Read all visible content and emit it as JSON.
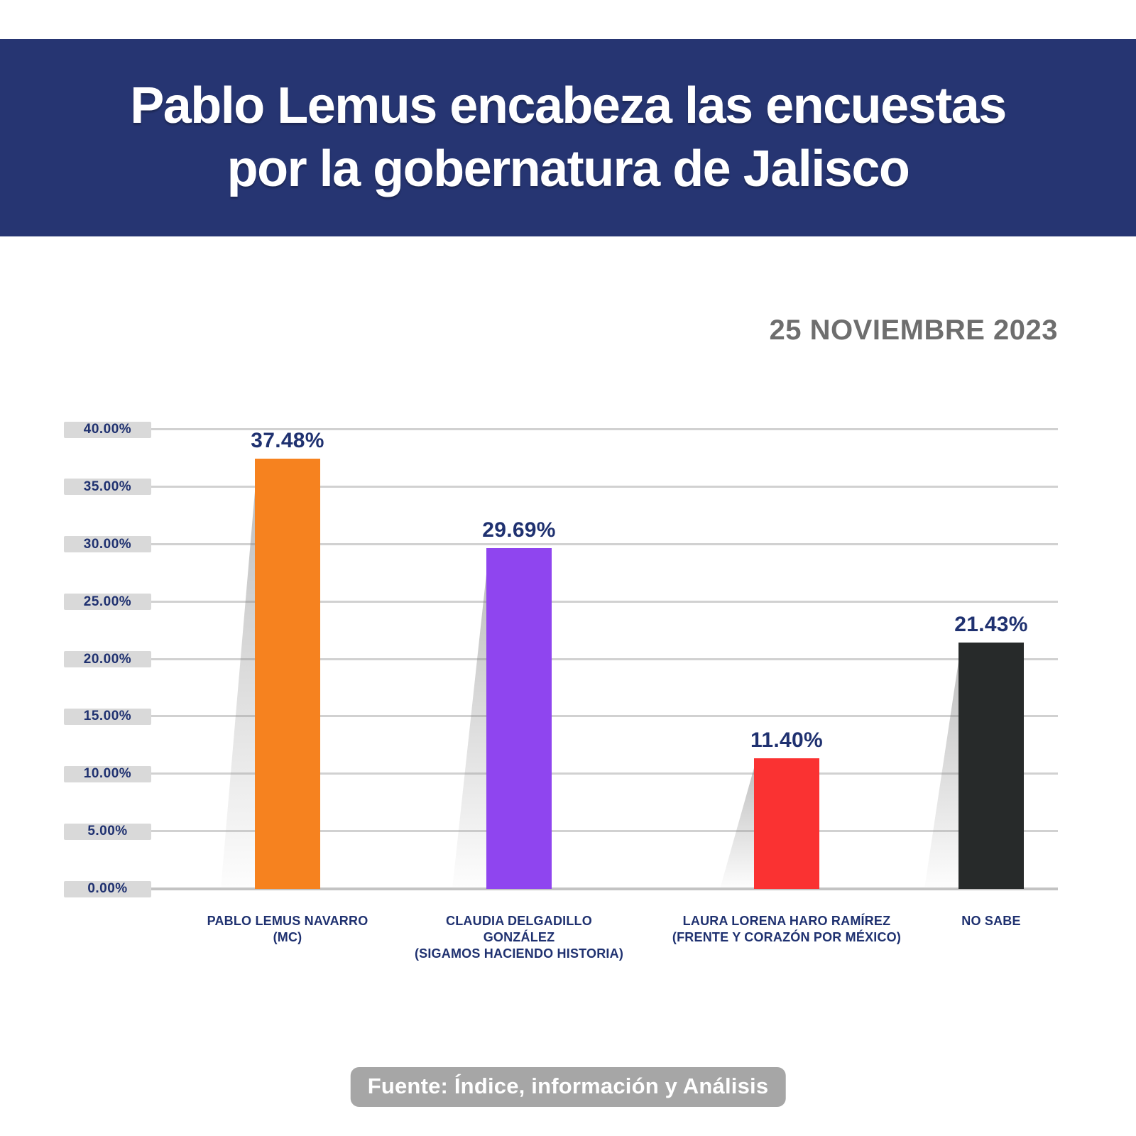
{
  "header": {
    "title_line1": "Pablo Lemus encabeza las encuestas",
    "title_line2": "por la gobernatura de Jalisco",
    "background_color": "#263572",
    "text_color": "#ffffff"
  },
  "date_label": "25 NOVIEMBRE 2023",
  "footer": {
    "source_label": "Fuente: Índice, información y Análisis",
    "background_color": "#a6a6a6",
    "text_color": "#ffffff"
  },
  "chart_data": {
    "type": "bar",
    "title": "Pablo Lemus encabeza las encuestas por la gobernatura de Jalisco",
    "subtitle": "25 NOVIEMBRE 2023",
    "categories": [
      "PABLO LEMUS NAVARRO (MC)",
      "CLAUDIA DELGADILLO GONZÁLEZ (SIGAMOS HACIENDO HISTORIA)",
      "LAURA LORENA HARO RAMÍREZ (FRENTE Y CORAZÓN POR MÉXICO)",
      "NO SABE"
    ],
    "category_lines": [
      [
        "PABLO LEMUS NAVARRO",
        "(MC)"
      ],
      [
        "CLAUDIA DELGADILLO",
        "GONZÁLEZ",
        "(SIGAMOS HACIENDO HISTORIA)"
      ],
      [
        "LAURA LORENA HARO RAMÍREZ",
        "(FRENTE Y CORAZÓN POR MÉXICO)"
      ],
      [
        "NO SABE"
      ]
    ],
    "values": [
      37.48,
      29.69,
      11.4,
      21.43
    ],
    "value_labels": [
      "37.48%",
      "29.69%",
      "11.40%",
      "21.43%"
    ],
    "bar_colors": [
      "#f6821f",
      "#8f45ef",
      "#fa3232",
      "#272a2a"
    ],
    "xlabel": "",
    "ylabel": "",
    "ylim": [
      0,
      40
    ],
    "yticks": [
      0,
      5,
      10,
      15,
      20,
      25,
      30,
      35,
      40
    ],
    "ytick_labels": [
      "0.00%",
      "5.00%",
      "10.00%",
      "15.00%",
      "20.00%",
      "25.00%",
      "30.00%",
      "35.00%",
      "40.00%"
    ],
    "grid": true,
    "legend": false,
    "label_color": "#1f3170",
    "gridline_color": "#d1d1d1",
    "tick_pill_color": "#d9d9d9",
    "date_color": "#6e6e6e"
  }
}
